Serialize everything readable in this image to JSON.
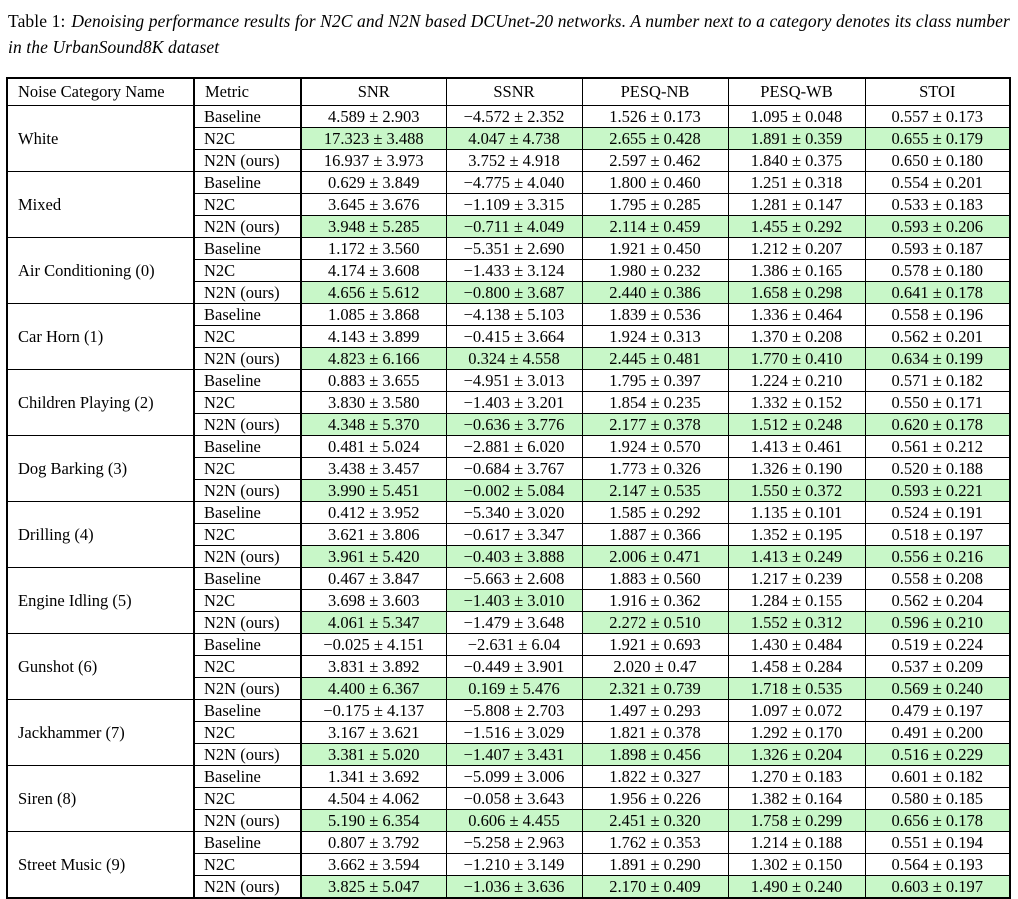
{
  "caption": {
    "label": "Table 1:",
    "text": "Denoising performance results for N2C and N2N based DCUnet-20 networks. A number next to a category denotes its class number in the UrbanSound8K dataset"
  },
  "table": {
    "highlight_color": "#c8f7c8",
    "headers": [
      "Noise Category Name",
      "Metric",
      "SNR",
      "SSNR",
      "PESQ-NB",
      "PESQ-WB",
      "STOI"
    ],
    "groups": [
      {
        "category": "White",
        "rows": [
          {
            "metric": "Baseline",
            "values": [
              "4.589 ± 2.903",
              "−4.572 ± 2.352",
              "1.526 ± 0.173",
              "1.095 ± 0.048",
              "0.557 ± 0.173"
            ],
            "highlight": [
              false,
              false,
              false,
              false,
              false
            ]
          },
          {
            "metric": "N2C",
            "values": [
              "17.323 ± 3.488",
              "4.047 ± 4.738",
              "2.655 ± 0.428",
              "1.891 ± 0.359",
              "0.655 ± 0.179"
            ],
            "highlight": [
              true,
              true,
              true,
              true,
              true
            ]
          },
          {
            "metric": "N2N (ours)",
            "values": [
              "16.937 ± 3.973",
              "3.752 ± 4.918",
              "2.597 ± 0.462",
              "1.840 ± 0.375",
              "0.650 ± 0.180"
            ],
            "highlight": [
              false,
              false,
              false,
              false,
              false
            ]
          }
        ]
      },
      {
        "category": "Mixed",
        "rows": [
          {
            "metric": "Baseline",
            "values": [
              "0.629 ± 3.849",
              "−4.775 ± 4.040",
              "1.800 ± 0.460",
              "1.251 ± 0.318",
              "0.554 ± 0.201"
            ],
            "highlight": [
              false,
              false,
              false,
              false,
              false
            ]
          },
          {
            "metric": "N2C",
            "values": [
              "3.645 ± 3.676",
              "−1.109 ± 3.315",
              "1.795 ± 0.285",
              "1.281 ± 0.147",
              "0.533 ± 0.183"
            ],
            "highlight": [
              false,
              false,
              false,
              false,
              false
            ]
          },
          {
            "metric": "N2N (ours)",
            "values": [
              "3.948 ± 5.285",
              "−0.711 ± 4.049",
              "2.114 ± 0.459",
              "1.455 ± 0.292",
              "0.593 ± 0.206"
            ],
            "highlight": [
              true,
              true,
              true,
              true,
              true
            ]
          }
        ]
      },
      {
        "category": "Air Conditioning (0)",
        "rows": [
          {
            "metric": "Baseline",
            "values": [
              "1.172 ± 3.560",
              "−5.351 ± 2.690",
              "1.921 ± 0.450",
              "1.212 ± 0.207",
              "0.593 ± 0.187"
            ],
            "highlight": [
              false,
              false,
              false,
              false,
              false
            ]
          },
          {
            "metric": "N2C",
            "values": [
              "4.174 ± 3.608",
              "−1.433 ± 3.124",
              "1.980 ± 0.232",
              "1.386 ± 0.165",
              "0.578 ± 0.180"
            ],
            "highlight": [
              false,
              false,
              false,
              false,
              false
            ]
          },
          {
            "metric": "N2N (ours)",
            "values": [
              "4.656 ± 5.612",
              "−0.800 ± 3.687",
              "2.440 ± 0.386",
              "1.658 ± 0.298",
              "0.641 ± 0.178"
            ],
            "highlight": [
              true,
              true,
              true,
              true,
              true
            ]
          }
        ]
      },
      {
        "category": "Car Horn (1)",
        "rows": [
          {
            "metric": "Baseline",
            "values": [
              "1.085 ± 3.868",
              "−4.138 ± 5.103",
              "1.839 ± 0.536",
              "1.336 ± 0.464",
              "0.558 ± 0.196"
            ],
            "highlight": [
              false,
              false,
              false,
              false,
              false
            ]
          },
          {
            "metric": "N2C",
            "values": [
              "4.143 ± 3.899",
              "−0.415 ± 3.664",
              "1.924 ± 0.313",
              "1.370 ± 0.208",
              "0.562 ± 0.201"
            ],
            "highlight": [
              false,
              false,
              false,
              false,
              false
            ]
          },
          {
            "metric": "N2N (ours)",
            "values": [
              "4.823 ± 6.166",
              "0.324 ± 4.558",
              "2.445 ± 0.481",
              "1.770 ± 0.410",
              "0.634 ± 0.199"
            ],
            "highlight": [
              true,
              true,
              true,
              true,
              true
            ]
          }
        ]
      },
      {
        "category": "Children Playing (2)",
        "rows": [
          {
            "metric": "Baseline",
            "values": [
              "0.883 ± 3.655",
              "−4.951 ± 3.013",
              "1.795 ± 0.397",
              "1.224 ± 0.210",
              "0.571 ± 0.182"
            ],
            "highlight": [
              false,
              false,
              false,
              false,
              false
            ]
          },
          {
            "metric": "N2C",
            "values": [
              "3.830 ± 3.580",
              "−1.403 ± 3.201",
              "1.854 ± 0.235",
              "1.332 ± 0.152",
              "0.550 ± 0.171"
            ],
            "highlight": [
              false,
              false,
              false,
              false,
              false
            ]
          },
          {
            "metric": "N2N (ours)",
            "values": [
              "4.348 ± 5.370",
              "−0.636 ± 3.776",
              "2.177 ± 0.378",
              "1.512 ± 0.248",
              "0.620 ± 0.178"
            ],
            "highlight": [
              true,
              true,
              true,
              true,
              true
            ]
          }
        ]
      },
      {
        "category": "Dog Barking (3)",
        "rows": [
          {
            "metric": "Baseline",
            "values": [
              "0.481 ± 5.024",
              "−2.881 ± 6.020",
              "1.924 ± 0.570",
              "1.413 ± 0.461",
              "0.561 ± 0.212"
            ],
            "highlight": [
              false,
              false,
              false,
              false,
              false
            ]
          },
          {
            "metric": "N2C",
            "values": [
              "3.438 ± 3.457",
              "−0.684 ± 3.767",
              "1.773 ± 0.326",
              "1.326 ± 0.190",
              "0.520 ± 0.188"
            ],
            "highlight": [
              false,
              false,
              false,
              false,
              false
            ]
          },
          {
            "metric": "N2N (ours)",
            "values": [
              "3.990 ± 5.451",
              "−0.002 ± 5.084",
              "2.147 ± 0.535",
              "1.550 ± 0.372",
              "0.593 ± 0.221"
            ],
            "highlight": [
              true,
              true,
              true,
              true,
              true
            ]
          }
        ]
      },
      {
        "category": "Drilling (4)",
        "rows": [
          {
            "metric": "Baseline",
            "values": [
              "0.412 ± 3.952",
              "−5.340 ± 3.020",
              "1.585 ± 0.292",
              "1.135 ± 0.101",
              "0.524 ± 0.191"
            ],
            "highlight": [
              false,
              false,
              false,
              false,
              false
            ]
          },
          {
            "metric": "N2C",
            "values": [
              "3.621 ± 3.806",
              "−0.617 ± 3.347",
              "1.887 ± 0.366",
              "1.352 ± 0.195",
              "0.518 ± 0.197"
            ],
            "highlight": [
              false,
              false,
              false,
              false,
              false
            ]
          },
          {
            "metric": "N2N (ours)",
            "values": [
              "3.961 ± 5.420",
              "−0.403 ± 3.888",
              "2.006 ± 0.471",
              "1.413 ± 0.249",
              "0.556 ± 0.216"
            ],
            "highlight": [
              true,
              true,
              true,
              true,
              true
            ]
          }
        ]
      },
      {
        "category": "Engine Idling (5)",
        "rows": [
          {
            "metric": "Baseline",
            "values": [
              "0.467 ± 3.847",
              "−5.663 ± 2.608",
              "1.883 ± 0.560",
              "1.217 ± 0.239",
              "0.558 ± 0.208"
            ],
            "highlight": [
              false,
              false,
              false,
              false,
              false
            ]
          },
          {
            "metric": "N2C",
            "values": [
              "3.698 ± 3.603",
              "−1.403 ± 3.010",
              "1.916 ± 0.362",
              "1.284 ± 0.155",
              "0.562 ± 0.204"
            ],
            "highlight": [
              false,
              true,
              false,
              false,
              false
            ]
          },
          {
            "metric": "N2N (ours)",
            "values": [
              "4.061 ± 5.347",
              "−1.479 ± 3.648",
              "2.272 ± 0.510",
              "1.552 ± 0.312",
              "0.596 ± 0.210"
            ],
            "highlight": [
              true,
              false,
              true,
              true,
              true
            ]
          }
        ]
      },
      {
        "category": "Gunshot (6)",
        "rows": [
          {
            "metric": "Baseline",
            "values": [
              "−0.025 ± 4.151",
              "−2.631 ± 6.04",
              "1.921 ± 0.693",
              "1.430 ± 0.484",
              "0.519 ± 0.224"
            ],
            "highlight": [
              false,
              false,
              false,
              false,
              false
            ]
          },
          {
            "metric": "N2C",
            "values": [
              "3.831 ± 3.892",
              "−0.449 ± 3.901",
              "2.020 ± 0.47",
              "1.458 ± 0.284",
              "0.537 ± 0.209"
            ],
            "highlight": [
              false,
              false,
              false,
              false,
              false
            ]
          },
          {
            "metric": "N2N (ours)",
            "values": [
              "4.400 ± 6.367",
              "0.169 ± 5.476",
              "2.321 ± 0.739",
              "1.718 ± 0.535",
              "0.569 ± 0.240"
            ],
            "highlight": [
              true,
              true,
              true,
              true,
              true
            ]
          }
        ]
      },
      {
        "category": "Jackhammer (7)",
        "rows": [
          {
            "metric": "Baseline",
            "values": [
              "−0.175 ± 4.137",
              "−5.808 ± 2.703",
              "1.497 ± 0.293",
              "1.097 ± 0.072",
              "0.479 ± 0.197"
            ],
            "highlight": [
              false,
              false,
              false,
              false,
              false
            ]
          },
          {
            "metric": "N2C",
            "values": [
              "3.167 ± 3.621",
              "−1.516 ± 3.029",
              "1.821 ± 0.378",
              "1.292 ± 0.170",
              "0.491 ± 0.200"
            ],
            "highlight": [
              false,
              false,
              false,
              false,
              false
            ]
          },
          {
            "metric": "N2N (ours)",
            "values": [
              "3.381 ± 5.020",
              "−1.407 ± 3.431",
              "1.898 ± 0.456",
              "1.326 ± 0.204",
              "0.516 ± 0.229"
            ],
            "highlight": [
              true,
              true,
              true,
              true,
              true
            ]
          }
        ]
      },
      {
        "category": "Siren (8)",
        "rows": [
          {
            "metric": "Baseline",
            "values": [
              "1.341 ± 3.692",
              "−5.099 ± 3.006",
              "1.822 ± 0.327",
              "1.270 ± 0.183",
              "0.601 ± 0.182"
            ],
            "highlight": [
              false,
              false,
              false,
              false,
              false
            ]
          },
          {
            "metric": "N2C",
            "values": [
              "4.504 ± 4.062",
              "−0.058 ± 3.643",
              "1.956 ± 0.226",
              "1.382 ± 0.164",
              "0.580 ± 0.185"
            ],
            "highlight": [
              false,
              false,
              false,
              false,
              false
            ]
          },
          {
            "metric": "N2N (ours)",
            "values": [
              "5.190 ± 6.354",
              "0.606 ± 4.455",
              "2.451 ± 0.320",
              "1.758 ± 0.299",
              "0.656 ± 0.178"
            ],
            "highlight": [
              true,
              true,
              true,
              true,
              true
            ]
          }
        ]
      },
      {
        "category": "Street Music (9)",
        "rows": [
          {
            "metric": "Baseline",
            "values": [
              "0.807 ± 3.792",
              "−5.258 ± 2.963",
              "1.762 ± 0.353",
              "1.214 ± 0.188",
              "0.551 ± 0.194"
            ],
            "highlight": [
              false,
              false,
              false,
              false,
              false
            ]
          },
          {
            "metric": "N2C",
            "values": [
              "3.662 ± 3.594",
              "−1.210 ± 3.149",
              "1.891 ± 0.290",
              "1.302 ± 0.150",
              "0.564 ± 0.193"
            ],
            "highlight": [
              false,
              false,
              false,
              false,
              false
            ]
          },
          {
            "metric": "N2N (ours)",
            "values": [
              "3.825 ± 5.047",
              "−1.036 ± 3.636",
              "2.170 ± 0.409",
              "1.490 ± 0.240",
              "0.603 ± 0.197"
            ],
            "highlight": [
              true,
              true,
              true,
              true,
              true
            ]
          }
        ]
      }
    ]
  }
}
